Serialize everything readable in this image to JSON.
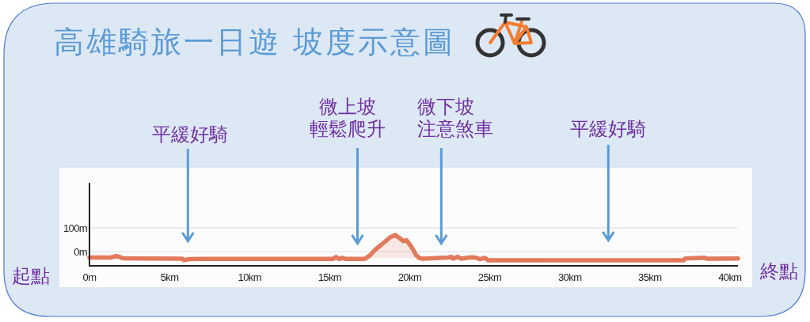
{
  "chart_data": {
    "type": "area",
    "title": "高雄騎旅一日遊 坡度示意圖",
    "x": [
      0,
      1.3,
      1.7,
      2.1,
      5.8,
      5.9,
      6.2,
      7.1,
      15.2,
      15.4,
      15.6,
      15.8,
      16.0,
      17.2,
      17.5,
      17.8,
      18.1,
      18.3,
      18.6,
      18.8,
      19.1,
      19.4,
      19.6,
      19.8,
      20.0,
      20.2,
      20.4,
      20.6,
      20.8,
      22.4,
      22.6,
      22.7,
      23.0,
      23.2,
      23.8,
      24.1,
      24.4,
      24.7,
      24.9,
      37.1,
      37.2,
      38.4,
      38.6,
      40.5
    ],
    "series": [
      {
        "color": "#e27a5b",
        "values": [
          -25,
          -25,
          -19,
          -28,
          -30,
          -36,
          -32,
          -31,
          -31,
          -23,
          -31,
          -26,
          -31,
          -31,
          -17,
          5,
          22,
          33,
          50,
          61,
          70,
          55,
          44,
          48,
          30,
          10,
          -15,
          -27,
          -30,
          -25,
          -22,
          -30,
          -22,
          -30,
          -24,
          -25,
          -32,
          -26,
          -37,
          -37,
          -29,
          -26,
          -30,
          -29
        ]
      }
    ],
    "xlim": [
      0,
      40.5
    ],
    "ylim": [
      -60,
      290
    ],
    "xticks": [
      {
        "value": 0,
        "label": "0m"
      },
      {
        "value": 5,
        "label": "5km"
      },
      {
        "value": 10,
        "label": "10km"
      },
      {
        "value": 15,
        "label": "15km"
      },
      {
        "value": 20,
        "label": "20km"
      },
      {
        "value": 25,
        "label": "25km"
      },
      {
        "value": 30,
        "label": "30km"
      },
      {
        "value": 35,
        "label": "35km"
      },
      {
        "value": 40,
        "label": "40km"
      }
    ],
    "yticks": [
      {
        "value": 0,
        "label": "0m"
      },
      {
        "value": 100,
        "label": "100m"
      }
    ],
    "grid": "y",
    "annotations": [
      "平緩好騎",
      "微上坡輕鬆爬升",
      "微下坡注意煞車",
      "平緩好騎",
      "起點",
      "終點"
    ]
  }
}
